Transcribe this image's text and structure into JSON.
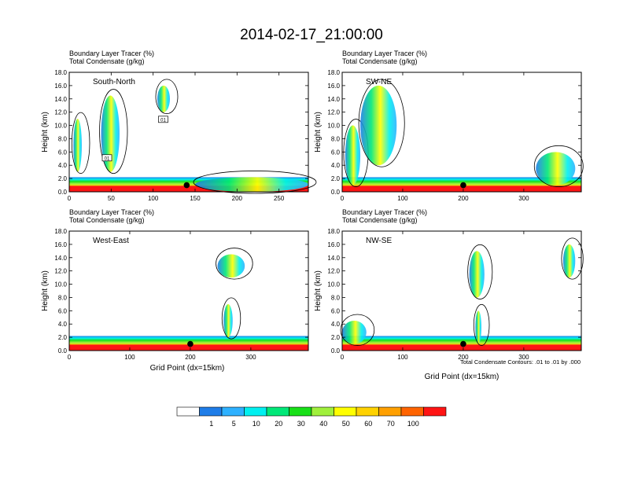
{
  "title": "2014-02-17_21:00:00",
  "panel_header_line1": "Boundary Layer Tracer   (%)",
  "panel_header_line2": "Total Condensate   (g/kg)",
  "ylabel": "Height (km)",
  "xlabel": "Grid Point (dx=15km)",
  "footnote": "Total Condensate Contours: .01 to .01 by .000",
  "colorbar": {
    "colors": [
      "#ffffff",
      "#1f7de8",
      "#2eb1ff",
      "#00f0f0",
      "#00e878",
      "#18e018",
      "#a0f03c",
      "#ffff00",
      "#ffd200",
      "#ffa000",
      "#ff6400",
      "#ff1414"
    ],
    "labels": [
      "1",
      "5",
      "10",
      "20",
      "30",
      "40",
      "50",
      "60",
      "70",
      "100"
    ]
  },
  "chart_data": [
    {
      "type": "heatmap",
      "panel": "top-left",
      "label": "South-North",
      "xlim": [
        0,
        285
      ],
      "ylim": [
        0,
        18
      ],
      "xticks": [
        "0",
        "50",
        "100",
        "150",
        "200",
        "250"
      ],
      "xtick_values": [
        0,
        50,
        100,
        150,
        200,
        250
      ],
      "yticks": [
        "0.0",
        "2.0",
        "4.0",
        "6.0",
        "8.0",
        "10.0",
        "12.0",
        "14.0",
        "16.0",
        "18.0"
      ],
      "marker": {
        "x": 140,
        "y": 1.0
      },
      "box_labels": [
        "01",
        "01"
      ],
      "plumes": [
        [
          5,
          15,
          3,
          11
        ],
        [
          38,
          60,
          3,
          14.5
        ],
        [
          105,
          120,
          12,
          16
        ],
        [
          150,
          285,
          0,
          2.2
        ]
      ]
    },
    {
      "type": "heatmap",
      "panel": "top-right",
      "label": "SW-NE",
      "xlim": [
        0,
        395
      ],
      "ylim": [
        0,
        18
      ],
      "xticks": [
        "0",
        "100",
        "200",
        "300"
      ],
      "xtick_values": [
        0,
        100,
        200,
        300
      ],
      "yticks": [
        "0.0",
        "2.0",
        "4.0",
        "6.0",
        "8.0",
        "10.0",
        "12.0",
        "14.0",
        "16.0",
        "18.0"
      ],
      "marker": {
        "x": 200,
        "y": 1.0
      },
      "plumes": [
        [
          5,
          30,
          1,
          10
        ],
        [
          30,
          90,
          4,
          16
        ],
        [
          320,
          385,
          1,
          6
        ]
      ]
    },
    {
      "type": "heatmap",
      "panel": "bottom-left",
      "label": "West-East",
      "xlim": [
        0,
        395
      ],
      "ylim": [
        0,
        18
      ],
      "xticks": [
        "0",
        "100",
        "200",
        "300"
      ],
      "xtick_values": [
        0,
        100,
        200,
        300
      ],
      "yticks": [
        "0.0",
        "2.0",
        "4.0",
        "6.0",
        "8.0",
        "10.0",
        "12.0",
        "14.0",
        "16.0",
        "18.0"
      ],
      "marker": {
        "x": 200,
        "y": 1.0
      },
      "plumes": [
        [
          245,
          290,
          11,
          14.5
        ],
        [
          255,
          270,
          2,
          7
        ]
      ]
    },
    {
      "type": "heatmap",
      "panel": "bottom-right",
      "label": "NW-SE",
      "xlim": [
        0,
        395
      ],
      "ylim": [
        0,
        18
      ],
      "xticks": [
        "0",
        "100",
        "200",
        "300"
      ],
      "xtick_values": [
        0,
        100,
        200,
        300
      ],
      "yticks": [
        "0.0",
        "2.0",
        "4.0",
        "6.0",
        "8.0",
        "10.0",
        "12.0",
        "14.0",
        "16.0",
        "18.0"
      ],
      "marker": {
        "x": 200,
        "y": 1.0
      },
      "plumes": [
        [
          0,
          40,
          1,
          4.5
        ],
        [
          210,
          235,
          8,
          15
        ],
        [
          220,
          230,
          1,
          6
        ],
        [
          365,
          385,
          11,
          16
        ]
      ]
    }
  ]
}
